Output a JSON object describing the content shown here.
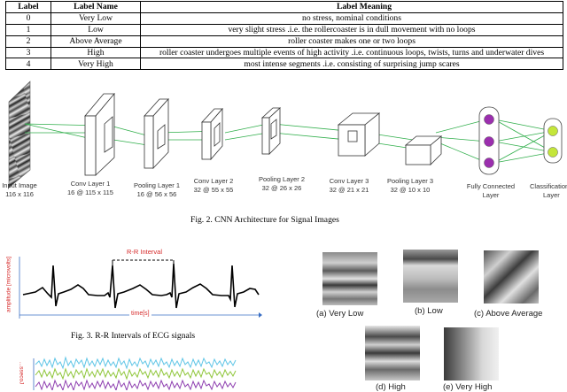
{
  "table": {
    "headers": [
      "Label",
      "Label Name",
      "Label Meaning"
    ],
    "rows": [
      [
        "0",
        "Very Low",
        "no stress, nominal conditions"
      ],
      [
        "1",
        "Low",
        "very slight stress .i.e. the rollercoaster is in dull movement with no loops"
      ],
      [
        "2",
        "Above Average",
        "roller coaster makes one or two loops"
      ],
      [
        "3",
        "High",
        "roller coaster undergoes multiple events of high activity .i.e. continuous loops, twists, turns and underwater dives"
      ],
      [
        "4",
        "Very High",
        "most intense segments .i.e. consisting of surprising jump scares"
      ]
    ]
  },
  "cnn": {
    "input": {
      "name": "Input Image",
      "dims": "116 x 116"
    },
    "layers": [
      {
        "name": "Conv Layer 1",
        "dims": "16 @ 115 x 115"
      },
      {
        "name": "Pooling Layer 1",
        "dims": "16 @ 56 x 56"
      },
      {
        "name": "Conv Layer 2",
        "dims": "32 @ 55 x 55"
      },
      {
        "name": "Pooling Layer 2",
        "dims": "32 @ 26 x 26"
      },
      {
        "name": "Conv Layer 3",
        "dims": "32 @ 21 x 21"
      },
      {
        "name": "Pooling Layer 3",
        "dims": "32 @ 10 x 10"
      }
    ],
    "fc": {
      "line1": "Fully Connected",
      "line2": "Layer"
    },
    "cls": {
      "line1": "Classification",
      "line2": "Layer"
    },
    "caption": "Fig. 2.   CNN Architecture for Signal Images",
    "colors": {
      "line": "#2fae4a",
      "purple": "#9b2fae",
      "yellow_green": "#c4e63a"
    }
  },
  "ecg": {
    "rr_label": "R-R Interval",
    "x_label": "time[s]",
    "y_label": "amplitude [microvolts]",
    "caption": "Fig. 3.   R-R Intervals of ECG signals",
    "colors": {
      "annotation": "#d62a2a",
      "axis": "#3a6fc4"
    }
  },
  "lower_plot": {
    "y_label": "...ssecoJ"
  },
  "signal_images": {
    "captions": [
      "(a) Very Low",
      "(b) Low",
      "(c) Above Average",
      "(d) High",
      "(e) Very High"
    ]
  }
}
